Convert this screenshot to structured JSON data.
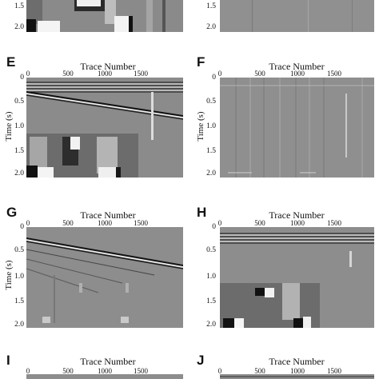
{
  "figure": {
    "xlabel": "Trace Number",
    "ylabel": "Time (s)",
    "x_ticks": [
      "0",
      "500",
      "1000",
      "1500"
    ],
    "y_ticks": [
      "0",
      "0.5",
      "1.0",
      "1.5",
      "2.0"
    ],
    "panels": [
      {
        "id": "D",
        "letter": "",
        "visible": "bottom-only",
        "y_ticks": [
          "1.5",
          "2.0"
        ]
      },
      {
        "id": "D2",
        "letter": "",
        "visible": "bottom-only",
        "y_ticks": [
          "1.5",
          "2.0"
        ]
      },
      {
        "id": "E",
        "letter": "E",
        "x_ticks": [
          "0",
          "500",
          "1000",
          "1500"
        ]
      },
      {
        "id": "F",
        "letter": "F",
        "x_ticks": [
          "0",
          "500",
          "1000",
          "1500"
        ]
      },
      {
        "id": "G",
        "letter": "G",
        "x_ticks": [
          "0",
          "500",
          "1000",
          "1500"
        ]
      },
      {
        "id": "H",
        "letter": "H",
        "x_ticks": [
          "0",
          "500",
          "1000",
          "1500"
        ]
      },
      {
        "id": "I",
        "letter": "I",
        "x_ticks": [
          "0",
          "500",
          "1000",
          "1500"
        ]
      },
      {
        "id": "J",
        "letter": "J",
        "x_ticks": [
          "0",
          "500",
          "1000",
          "1500"
        ]
      }
    ]
  }
}
